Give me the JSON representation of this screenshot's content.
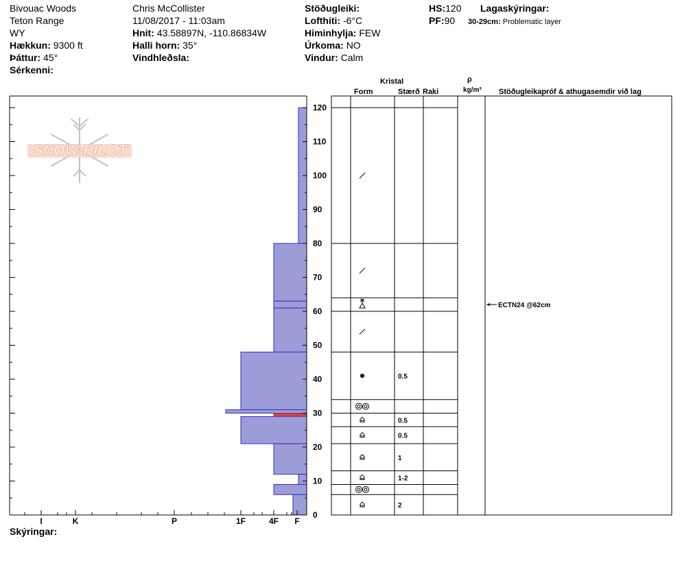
{
  "header": {
    "col1": [
      "Bivouac Woods",
      "Teton Range",
      "WY"
    ],
    "elevation_label": "Hækkun:",
    "elevation": "9300 ft",
    "aspect_label": "Þáttur:",
    "aspect": "45°",
    "features_label": "Sérkenni:",
    "observer": "Chris McCollister",
    "datetime": "11/08/2017 - 11:03am",
    "coords_label": "Hnit:",
    "coords": "43.58897N, -110.86834W",
    "slope_label": "Halli horn:",
    "slope": "35°",
    "wind_loading_label": "Vindhleðsla:",
    "stability_label": "Stöðugleiki:",
    "air_temp_label": "Lofthiti:",
    "air_temp": "-6°C",
    "sky_label": "Himinhylja:",
    "sky": "FEW",
    "precip_label": "Úrkoma:",
    "precip": "NO",
    "wind_label": "Vindur:",
    "wind": "Calm",
    "hs_label": "HS:",
    "hs": "120",
    "pf_label": "PF:",
    "pf": "90",
    "layer_notes_label": "Lagaskýringar:",
    "layer_note_range": "30-29cm:",
    "layer_note_text": "Problematic layer"
  },
  "columns": {
    "crystal": "Kristal",
    "form": "Form",
    "size": "Stærð",
    "moisture": "Raki",
    "rho": "ρ",
    "density_unit": "kg/m³",
    "tests": "Stöðugleikapróf & athugasemdir við lag"
  },
  "logo": {
    "text": "SNOW PILOT"
  },
  "footer": {
    "comments_label": "Skýringar:"
  },
  "test_note": "ECTN24 @62cm",
  "chart_data": {
    "type": "bar",
    "orientation": "horizontal",
    "hardness_scale": [
      "I",
      "K",
      "P",
      "1F",
      "4F",
      "F"
    ],
    "y_label": "",
    "y_ticks": [
      0,
      10,
      20,
      30,
      40,
      50,
      60,
      70,
      80,
      90,
      100,
      110,
      120
    ],
    "ylim": [
      0,
      120
    ],
    "hardness_layers": [
      {
        "bottom": 80,
        "top": 120,
        "hardness": "F"
      },
      {
        "bottom": 63,
        "top": 80,
        "hardness": "4F"
      },
      {
        "bottom": 61,
        "top": 63,
        "hardness": "4F"
      },
      {
        "bottom": 48,
        "top": 61,
        "hardness": "4F"
      },
      {
        "bottom": 31,
        "top": 48,
        "hardness": "1F"
      },
      {
        "bottom": 30,
        "top": 31,
        "hardness": "P-"
      },
      {
        "bottom": 29,
        "top": 30,
        "hardness": "4F"
      },
      {
        "bottom": 21,
        "top": 29,
        "hardness": "1F"
      },
      {
        "bottom": 12,
        "top": 21,
        "hardness": "4F"
      },
      {
        "bottom": 9,
        "top": 12,
        "hardness": "F"
      },
      {
        "bottom": 6,
        "top": 9,
        "hardness": "4F"
      },
      {
        "bottom": 0,
        "top": 6,
        "hardness": "F-"
      }
    ],
    "problem_layer": {
      "bottom": 29,
      "top": 30
    },
    "crystal_layers": [
      {
        "bottom": 80,
        "top": 120,
        "form": "/",
        "size": ""
      },
      {
        "bottom": 64,
        "top": 80,
        "form": "/",
        "size": ""
      },
      {
        "bottom": 60,
        "top": 64,
        "form": "surface hoar",
        "size": ""
      },
      {
        "bottom": 48,
        "top": 60,
        "form": "/",
        "size": ""
      },
      {
        "bottom": 34,
        "top": 48,
        "form": "●",
        "size": "0.5"
      },
      {
        "bottom": 30,
        "top": 34,
        "form": "◎◎",
        "size": ""
      },
      {
        "bottom": 26,
        "top": 30,
        "form": "faceted",
        "size": "0.5"
      },
      {
        "bottom": 21,
        "top": 26,
        "form": "faceted",
        "size": "0.5"
      },
      {
        "bottom": 13,
        "top": 21,
        "form": "faceted",
        "size": "1"
      },
      {
        "bottom": 9,
        "top": 13,
        "form": "faceted",
        "size": "1-2"
      },
      {
        "bottom": 6,
        "top": 9,
        "form": "◎◎",
        "size": ""
      },
      {
        "bottom": 0,
        "top": 6,
        "form": "faceted",
        "size": "2"
      }
    ]
  }
}
